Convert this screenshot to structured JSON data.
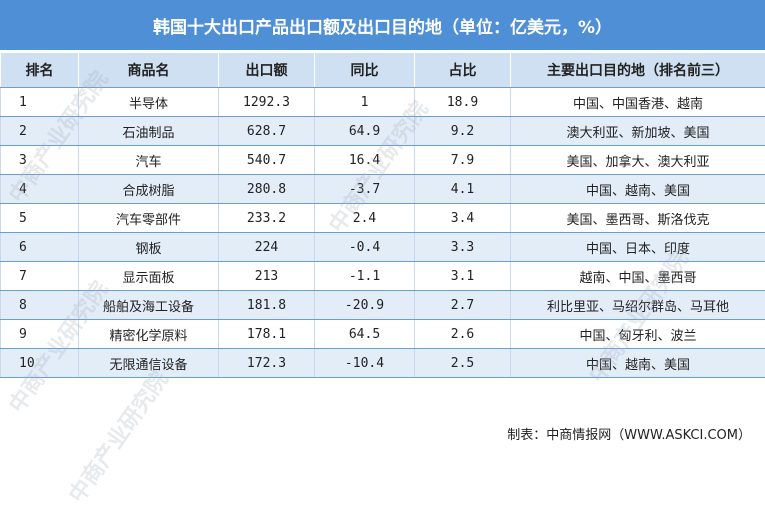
{
  "title": "韩国十大出口产品出口额及出口目的地（单位：亿美元，%）",
  "source": "制表：中商情报网（WWW.ASKCI.COM）",
  "watermark": "中商产业研究院",
  "colors": {
    "header_bar": "#4f8fd6",
    "header_row": "#cfe0f3",
    "stripe": "#e3edf8"
  },
  "chart_data": {
    "type": "table",
    "title": "韩国十大出口产品出口额及出口目的地（单位：亿美元，%）",
    "columns": [
      "排名",
      "商品名",
      "出口额",
      "同比",
      "占比",
      "主要出口目的地（排名前三）"
    ],
    "rows": [
      [
        "1",
        "半导体",
        "1292.3",
        "1",
        "18.9",
        "中国、中国香港、越南"
      ],
      [
        "2",
        "石油制品",
        "628.7",
        "64.9",
        "9.2",
        "澳大利亚、新加坡、美国"
      ],
      [
        "3",
        "汽车",
        "540.7",
        "16.4",
        "7.9",
        "美国、加拿大、澳大利亚"
      ],
      [
        "4",
        "合成树脂",
        "280.8",
        "-3.7",
        "4.1",
        "中国、越南、美国"
      ],
      [
        "5",
        "汽车零部件",
        "233.2",
        "2.4",
        "3.4",
        "美国、墨西哥、斯洛伐克"
      ],
      [
        "6",
        "钢板",
        "224",
        "-0.4",
        "3.3",
        "中国、日本、印度"
      ],
      [
        "7",
        "显示面板",
        "213",
        "-1.1",
        "3.1",
        "越南、中国、墨西哥"
      ],
      [
        "8",
        "船舶及海工设备",
        "181.8",
        "-20.9",
        "2.7",
        "利比里亚、马绍尔群岛、马耳他"
      ],
      [
        "9",
        "精密化学原料",
        "178.1",
        "64.5",
        "2.6",
        "中国、匈牙利、波兰"
      ],
      [
        "10",
        "无限通信设备",
        "172.3",
        "-10.4",
        "2.5",
        "中国、越南、美国"
      ]
    ]
  }
}
